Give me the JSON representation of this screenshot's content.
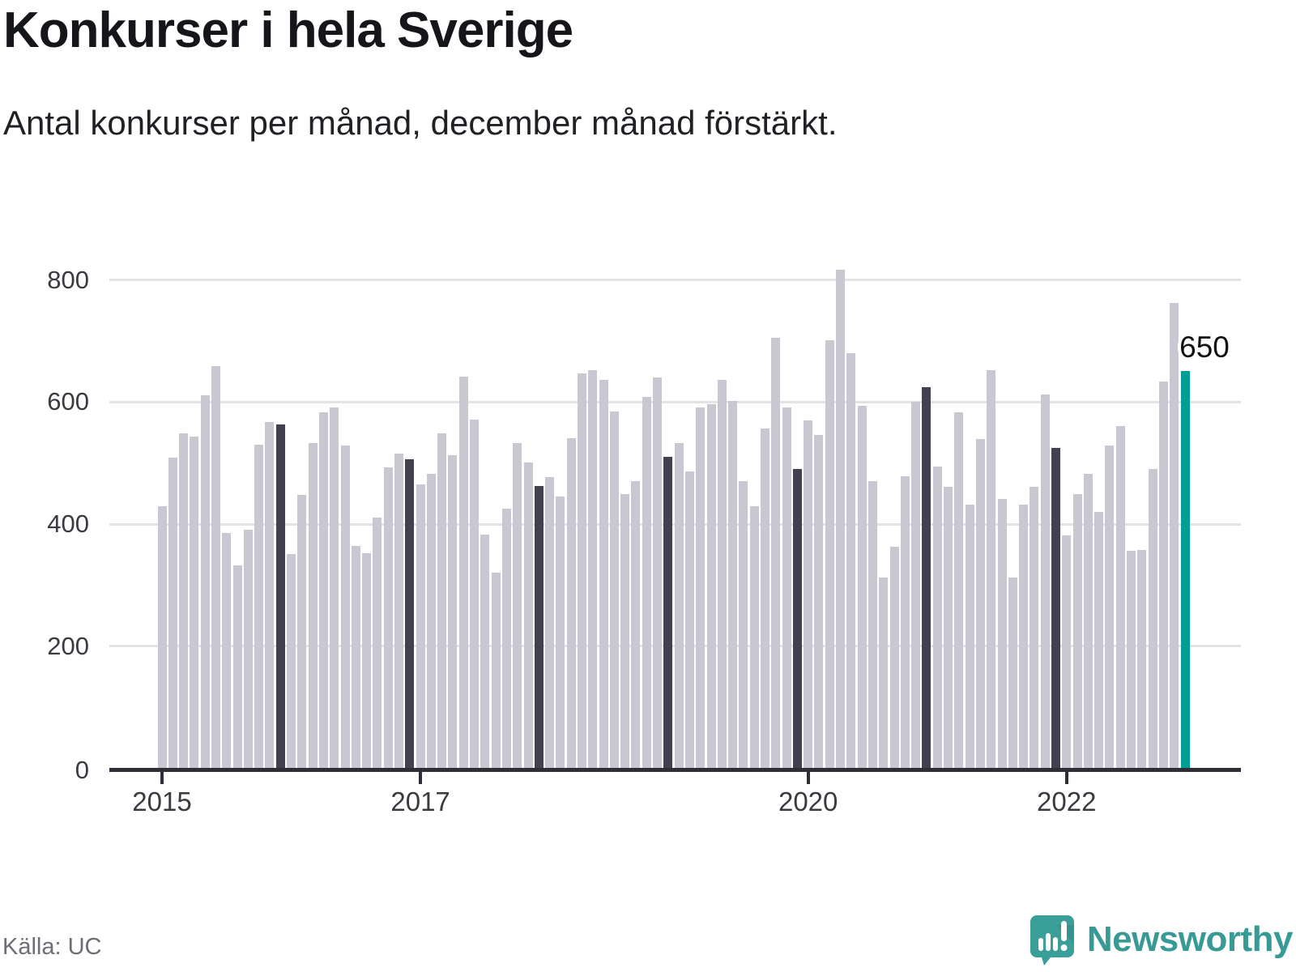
{
  "header": {
    "title": "Konkurser i hela Sverige",
    "subtitle": "Antal konkurser per månad, december månad förstärkt."
  },
  "annotation": {
    "label": "650",
    "value": 650,
    "month": "december 2022"
  },
  "source": {
    "label": "Källa: UC"
  },
  "branding": {
    "name": "Newsworthy"
  },
  "colors": {
    "bar": "#c9c7d2",
    "december_bar": "#434050",
    "highlight_bar": "#009e94",
    "axis": "#2e2d38",
    "gridline": "#e3e3e5",
    "brand_teal": "#389a94"
  },
  "chart_data": {
    "type": "bar",
    "title": "Konkurser i hela Sverige",
    "subtitle": "Antal konkurser per månad, december månad förstärkt.",
    "ylabel": "",
    "xlabel": "",
    "ylim": [
      0,
      850
    ],
    "y_ticks": [
      0,
      200,
      400,
      600,
      800
    ],
    "grid": "horizontal",
    "december_emphasized": true,
    "last_bar_highlighted": true,
    "x_ticks": [
      {
        "label": "2015",
        "month_index": 0
      },
      {
        "label": "2017",
        "month_index": 24
      },
      {
        "label": "2020",
        "month_index": 60
      },
      {
        "label": "2022",
        "month_index": 84
      }
    ],
    "series_by_year": [
      {
        "year": "2015",
        "values": [
          428,
          508,
          548,
          542,
          610,
          658,
          385,
          332,
          390,
          530,
          567,
          562
        ]
      },
      {
        "year": "2016",
        "values": [
          350,
          447,
          532,
          583,
          591,
          528,
          364,
          352,
          410,
          492,
          515,
          505
        ]
      },
      {
        "year": "2017",
        "values": [
          465,
          481,
          548,
          512,
          641,
          570,
          382,
          320,
          425,
          532,
          500,
          462
        ]
      },
      {
        "year": "2018",
        "values": [
          476,
          444,
          540,
          646,
          651,
          636,
          584,
          448,
          470,
          607,
          640,
          510
        ]
      },
      {
        "year": "2019",
        "values": [
          532,
          485,
          590,
          596,
          636,
          601,
          470,
          429,
          556,
          704,
          590,
          490
        ]
      },
      {
        "year": "2020",
        "values": [
          569,
          545,
          700,
          816,
          679,
          593,
          470,
          312,
          362,
          477,
          600,
          624
        ]
      },
      {
        "year": "2021",
        "values": [
          494,
          461,
          583,
          431,
          539,
          652,
          440,
          312,
          431,
          460,
          612,
          524
        ]
      },
      {
        "year": "2022",
        "values": [
          381,
          449,
          482,
          419,
          528,
          560,
          356,
          357,
          489,
          633,
          762,
          650
        ]
      }
    ]
  }
}
